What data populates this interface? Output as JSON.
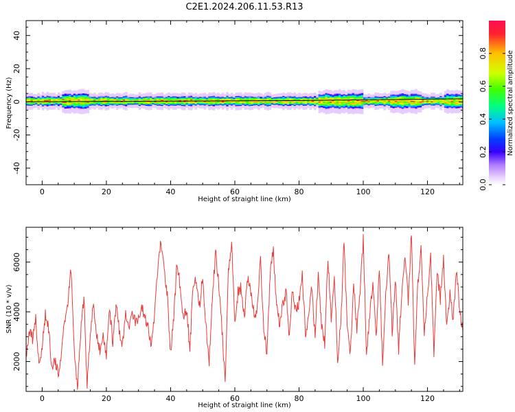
{
  "title": "C2E1.2024.206.11.53.R13",
  "colors": {
    "snr_line": "#e83a3a",
    "doppler_line": "#000000",
    "background": "#ffffff",
    "colormap": [
      "#ffffff",
      "#e6ccff",
      "#b07cff",
      "#3a00ff",
      "#0040ff",
      "#00c0ff",
      "#00ff80",
      "#40ff00",
      "#d0ff00",
      "#ffc000",
      "#ff2030"
    ]
  },
  "chart_data": [
    {
      "type": "heatmap",
      "title": "",
      "xlabel": "Height of straight line (km)",
      "ylabel": "Frequency (Hz)",
      "xlim": [
        -5,
        131
      ],
      "ylim": [
        -50,
        49
      ],
      "x_ticks": [
        0,
        20,
        40,
        60,
        80,
        100,
        120
      ],
      "y_ticks": [
        -40,
        -20,
        0,
        20,
        40
      ],
      "y_tick_labels": [
        "-40",
        "-20",
        "0",
        "20",
        "40"
      ],
      "x_tick_labels": [
        "0",
        "20",
        "40",
        "60",
        "80",
        "100",
        "120"
      ],
      "band": {
        "center_hz": 0,
        "typical_halfwidth_hz": 3,
        "enhanced_segments_km": [
          [
            6,
            14
          ],
          [
            86,
            100
          ],
          [
            108,
            118
          ],
          [
            125,
            131
          ]
        ]
      },
      "doppler_line": {
        "x": [
          -5,
          50,
          80,
          100,
          131
        ],
        "y": [
          0,
          0.5,
          0.8,
          1.2,
          1.8
        ]
      },
      "colorbar": {
        "label": "Normalized spectral amplitude",
        "range": [
          0,
          1
        ],
        "ticks": [
          0.0,
          0.2,
          0.4,
          0.6,
          0.8
        ],
        "tick_labels": [
          "0.0",
          "0.2",
          "0.4",
          "0.6",
          "0.8"
        ]
      }
    },
    {
      "type": "line",
      "title": "",
      "xlabel": "Height of straight line (km)",
      "ylabel": "SNR (10 * v/v)",
      "xlim": [
        -5,
        131
      ],
      "ylim": [
        800,
        7400
      ],
      "x_ticks": [
        0,
        20,
        40,
        60,
        80,
        100,
        120
      ],
      "x_tick_labels": [
        "0",
        "20",
        "40",
        "60",
        "80",
        "100",
        "120"
      ],
      "y_ticks": [
        2000,
        4000,
        6000
      ],
      "y_tick_labels": [
        "2000",
        "4000",
        "6000"
      ],
      "series": [
        {
          "x": [
            -5,
            -4,
            -3,
            -2,
            -1,
            0,
            1,
            2,
            3,
            4,
            5,
            6,
            7,
            8,
            9,
            10,
            11,
            12,
            13,
            14,
            15,
            16,
            17,
            18,
            19,
            20,
            21,
            22,
            23,
            24,
            25,
            26,
            27,
            28,
            29,
            30,
            31,
            32,
            33,
            34,
            35,
            36,
            37,
            38,
            39,
            40,
            41,
            42,
            43,
            44,
            45,
            46,
            47,
            48,
            49,
            50,
            51,
            52,
            53,
            54,
            55,
            56,
            57,
            58,
            59,
            60,
            61,
            62,
            63,
            64,
            65,
            66,
            67,
            68,
            69,
            70,
            71,
            72,
            73,
            74,
            75,
            76,
            77,
            78,
            79,
            80,
            81,
            82,
            83,
            84,
            85,
            86,
            87,
            88,
            89,
            90,
            91,
            92,
            93,
            94,
            95,
            96,
            97,
            98,
            99,
            100,
            101,
            102,
            103,
            104,
            105,
            106,
            107,
            108,
            109,
            110,
            111,
            112,
            113,
            114,
            115,
            116,
            117,
            118,
            119,
            120,
            121,
            122,
            123,
            124,
            125,
            126,
            127,
            128,
            129,
            130,
            131
          ],
          "y": [
            2200,
            3300,
            2900,
            3700,
            1800,
            2600,
            3900,
            3300,
            1800,
            2100,
            1500,
            2300,
            3700,
            4300,
            5800,
            2500,
            1000,
            3200,
            4600,
            1100,
            3300,
            4300,
            3100,
            2400,
            3100,
            2300,
            4100,
            2800,
            4300,
            3300,
            2600,
            3900,
            3400,
            4100,
            3600,
            3800,
            4300,
            3700,
            3400,
            2700,
            3900,
            5700,
            6900,
            5600,
            4600,
            2300,
            3800,
            6000,
            5000,
            3800,
            4100,
            2500,
            5000,
            5300,
            4200,
            5500,
            3400,
            2000,
            4500,
            6400,
            5100,
            3300,
            1200,
            5600,
            6700,
            3600,
            4800,
            5000,
            3800,
            5400,
            4800,
            3900,
            4100,
            6100,
            3300,
            2300,
            5500,
            6500,
            4300,
            3500,
            4300,
            4800,
            2900,
            5000,
            4000,
            4400,
            5500,
            3200,
            3700,
            5000,
            2900,
            5600,
            3500,
            2700,
            6200,
            3800,
            5500,
            2100,
            3500,
            6900,
            3300,
            2300,
            5100,
            3200,
            4900,
            6900,
            2400,
            3700,
            5300,
            3000,
            5800,
            1900,
            4700,
            6400,
            3100,
            5300,
            2400,
            4800,
            6200,
            4400,
            7200,
            1800,
            5200,
            6600,
            3100,
            4700,
            6200,
            2300,
            5600,
            4500,
            6100,
            3300,
            4800,
            3700,
            5700,
            4100,
            3200
          ]
        }
      ]
    }
  ]
}
